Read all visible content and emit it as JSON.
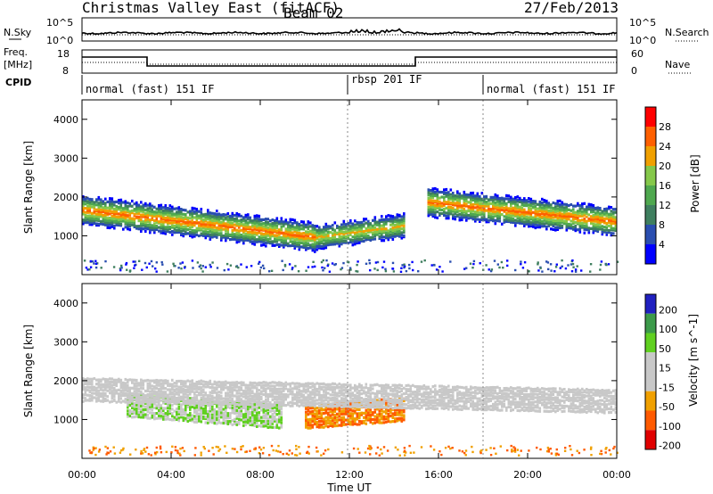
{
  "header": {
    "radar": "Christmas Valley East (fitACF)",
    "beam": "Beam 02",
    "date": "27/Feb/2013"
  },
  "noise_panel": {
    "left_label": "N.Sky",
    "left_ticks": [
      "10^5",
      "10^0"
    ],
    "right_label": "N.Search",
    "right_ticks": [
      "10^5",
      "10^0"
    ]
  },
  "freq_panel": {
    "left_label_1": "Freq.",
    "left_label_2": "[MHz]",
    "left_ticks": [
      "18",
      "8"
    ],
    "right_label": "Nave",
    "right_ticks": [
      "60",
      "0"
    ]
  },
  "cpid": {
    "label": "CPID",
    "segments": [
      "normal (fast) 151 IF",
      "rbsp 201 IF",
      "normal (fast) 151 IF"
    ]
  },
  "colors": {
    "power_scale": [
      "#0000ff",
      "#2a4eb0",
      "#3f7f5f",
      "#4fa84f",
      "#85c84a",
      "#f0a000",
      "#ff6000",
      "#ff0000"
    ],
    "velocity_scale": [
      "#e00000",
      "#ff5a00",
      "#f0a000",
      "#c8c8c8",
      "#c8c8c8",
      "#60d020",
      "#3c9a4a",
      "#2020c0"
    ]
  },
  "chart_data": [
    {
      "type": "heatmap",
      "title": "Power",
      "xlabel": "Time UT",
      "ylabel": "Slant Range [km]",
      "xlim": [
        "00:00",
        "00:00"
      ],
      "x_ticks": [
        "00:00",
        "04:00",
        "08:00",
        "12:00",
        "16:00",
        "20:00",
        "00:00"
      ],
      "ylim": [
        0,
        4500
      ],
      "y_ticks": [
        1000,
        2000,
        3000,
        4000
      ],
      "colorbar_label": "Power [dB]",
      "colorbar_ticks": [
        4,
        8,
        12,
        16,
        20,
        24,
        28
      ],
      "colorbar_range": [
        0,
        32
      ],
      "grid": false,
      "features": [
        {
          "name": "main_echo_band",
          "start_hour": 0,
          "end_hour": 10.5,
          "range_km_start": 1700,
          "range_km_end": 1000,
          "peak_power_db": 28
        },
        {
          "name": "evening_band",
          "start_hour": 10.5,
          "end_hour": 14.5,
          "range_km_start": 1000,
          "range_km_end": 1300,
          "peak_power_db": 24
        },
        {
          "name": "night_band",
          "start_hour": 15.5,
          "end_hour": 24,
          "range_km_start": 1900,
          "range_km_end": 1400,
          "peak_power_db": 28
        }
      ]
    },
    {
      "type": "heatmap",
      "title": "Velocity",
      "xlabel": "Time UT",
      "ylabel": "Slant Range [km]",
      "xlim": [
        "00:00",
        "00:00"
      ],
      "x_ticks": [
        "00:00",
        "04:00",
        "08:00",
        "12:00",
        "16:00",
        "20:00",
        "00:00"
      ],
      "ylim": [
        0,
        4500
      ],
      "y_ticks": [
        1000,
        2000,
        3000,
        4000
      ],
      "colorbar_label": "Velocity [m s^-1]",
      "colorbar_ticks": [
        200,
        100,
        50,
        15,
        -15,
        -50,
        -100,
        -200
      ],
      "grid": false,
      "features": [
        {
          "name": "positive_velocity_region",
          "start_hour": 2,
          "end_hour": 9,
          "range_km_start": 1400,
          "range_km_end": 1100,
          "velocity_ms": 50
        },
        {
          "name": "negative_velocity_region",
          "start_hour": 10,
          "end_hour": 14.5,
          "range_km_start": 1100,
          "range_km_end": 1300,
          "velocity_ms": -50
        },
        {
          "name": "ground_scatter_band",
          "start_hour": 0,
          "end_hour": 24,
          "range_km_start": 1800,
          "range_km_end": 1500,
          "velocity_ms": 0
        }
      ]
    }
  ]
}
